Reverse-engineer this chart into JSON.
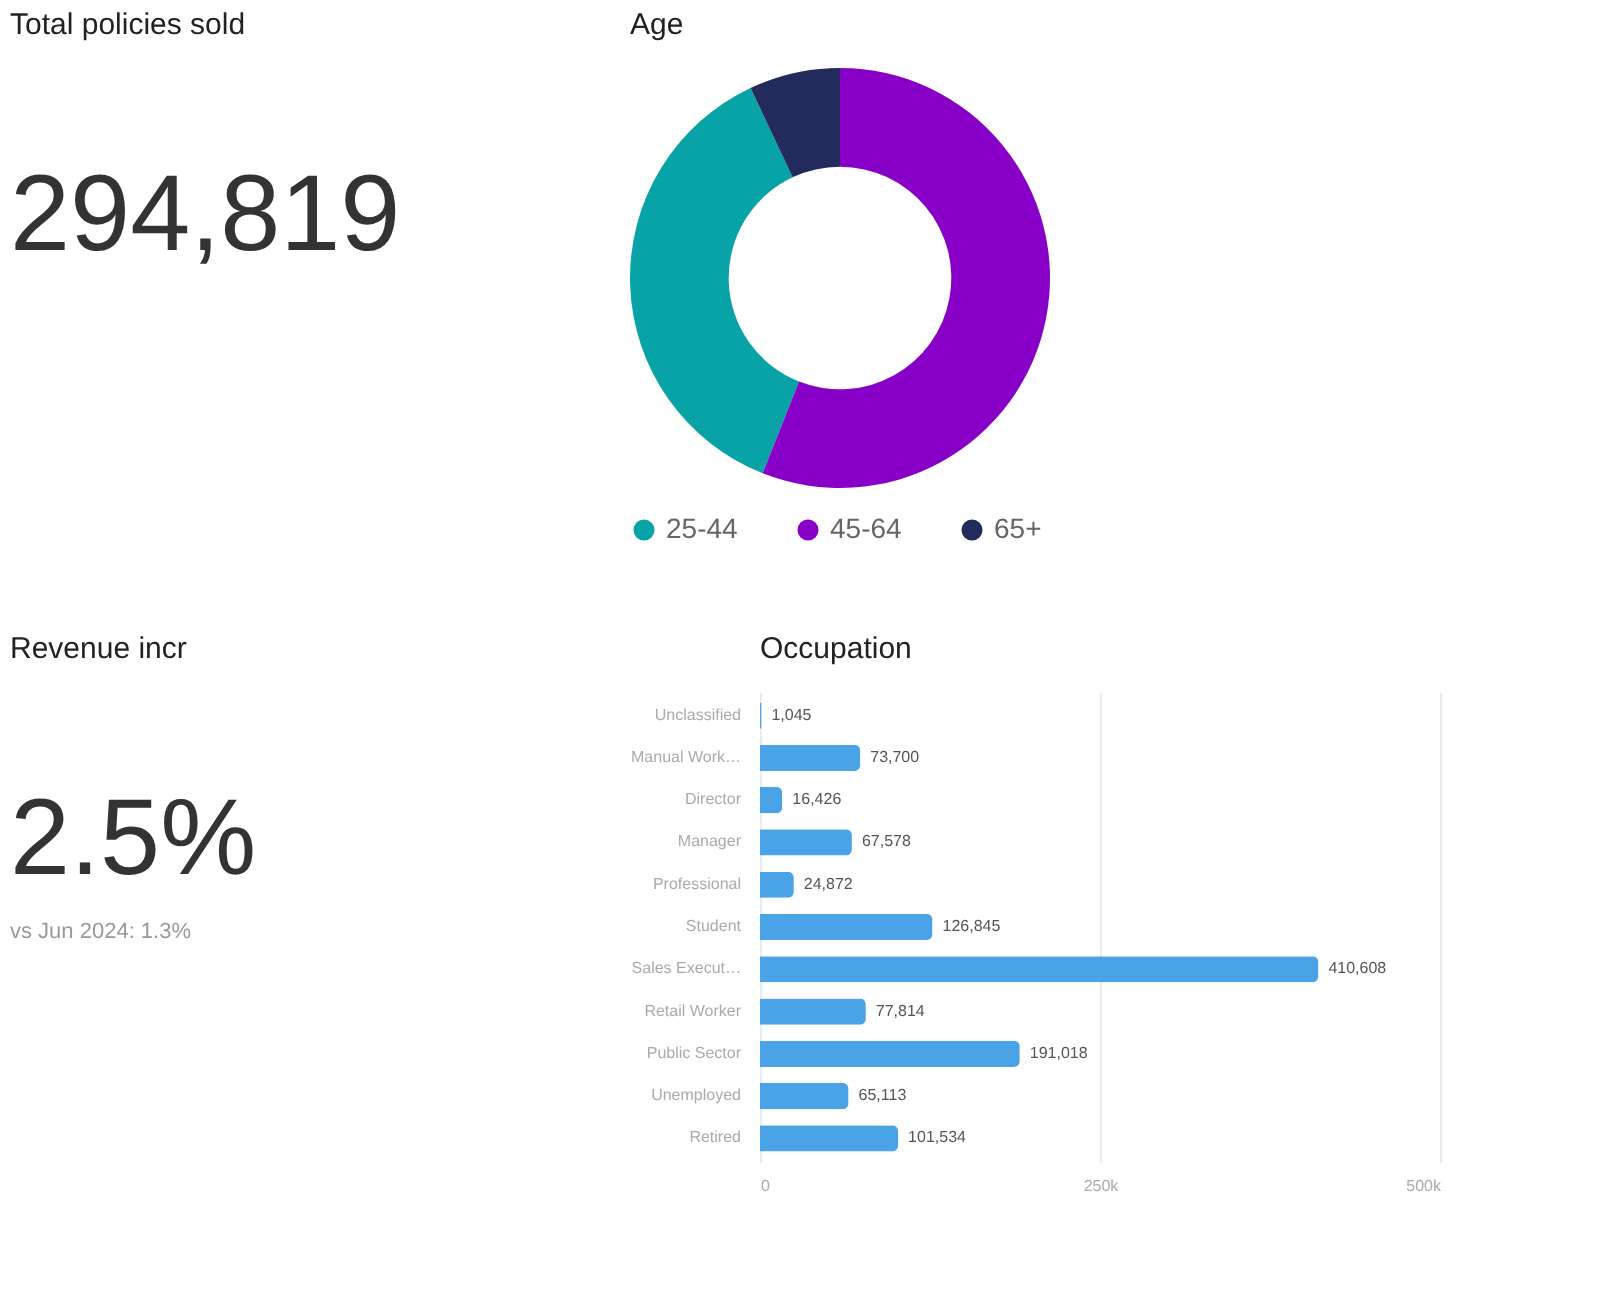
{
  "chart_data": [
    {
      "type": "other",
      "title": "Total policies sold",
      "annotations": [
        "294,819"
      ]
    },
    {
      "type": "donut",
      "title": "Age",
      "categories": [
        "25-44",
        "45-64",
        "65+"
      ],
      "values": [
        37,
        56,
        7
      ],
      "colors": [
        "#08a3a6",
        "#8800c8",
        "#232a5c"
      ],
      "legend": "bottom"
    },
    {
      "type": "other",
      "title": "Revenue incr",
      "annotations": [
        "2.5%",
        "vs Jun 2024: 1.3%"
      ]
    },
    {
      "type": "bar",
      "orientation": "horizontal",
      "title": "Occupation",
      "categories": [
        "Unclassified",
        "Manual Work…",
        "Director",
        "Manager",
        "Professional",
        "Student",
        "Sales Execut…",
        "Retail Worker",
        "Public Sector",
        "Unemployed",
        "Retired"
      ],
      "values": [
        1045,
        73700,
        16426,
        67578,
        24872,
        126845,
        410608,
        77814,
        191018,
        65113,
        101534
      ],
      "value_labels": [
        "1,045",
        "73,700",
        "16,426",
        "67,578",
        "24,872",
        "126,845",
        "410,608",
        "77,814",
        "191,018",
        "65,113",
        "101,534"
      ],
      "color": "#4aa3e6",
      "xlim": [
        0,
        500000
      ],
      "xticks": [
        0,
        {
          "value": 250000,
          "label": "250k"
        },
        {
          "value": 500000,
          "label": "500k"
        }
      ],
      "grid": "x"
    }
  ]
}
